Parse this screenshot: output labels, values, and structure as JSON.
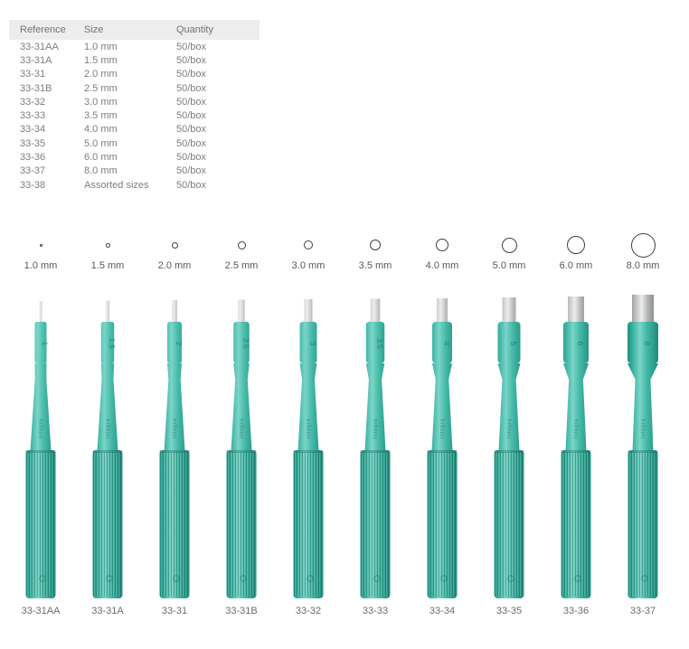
{
  "table": {
    "headers": [
      "Reference",
      "Size",
      "Quantity"
    ],
    "rows": [
      {
        "reference": "33-31AA",
        "size": "1.0 mm",
        "quantity": "50/box"
      },
      {
        "reference": "33-31A",
        "size": "1.5 mm",
        "quantity": "50/box"
      },
      {
        "reference": "33-31",
        "size": "2.0 mm",
        "quantity": "50/box"
      },
      {
        "reference": "33-31B",
        "size": "2.5 mm",
        "quantity": "50/box"
      },
      {
        "reference": "33-32",
        "size": "3.0 mm",
        "quantity": "50/box"
      },
      {
        "reference": "33-33",
        "size": "3.5 mm",
        "quantity": "50/box"
      },
      {
        "reference": "33-34",
        "size": "4.0 mm",
        "quantity": "50/box"
      },
      {
        "reference": "33-35",
        "size": "5.0 mm",
        "quantity": "50/box"
      },
      {
        "reference": "33-36",
        "size": "6.0 mm",
        "quantity": "50/box"
      },
      {
        "reference": "33-37",
        "size": "8.0 mm",
        "quantity": "50/box"
      },
      {
        "reference": "33-38",
        "size": "Assorted sizes",
        "quantity": "50/box"
      }
    ]
  },
  "punches": {
    "shaft_marking": "Integra",
    "items": [
      {
        "ref": "33-31AA",
        "size_label": "1.0 mm",
        "mm": 1.0,
        "mark": "1"
      },
      {
        "ref": "33-31A",
        "size_label": "1.5 mm",
        "mm": 1.5,
        "mark": "1.5"
      },
      {
        "ref": "33-31",
        "size_label": "2.0 mm",
        "mm": 2.0,
        "mark": "2"
      },
      {
        "ref": "33-31B",
        "size_label": "2.5 mm",
        "mm": 2.5,
        "mark": "2.5"
      },
      {
        "ref": "33-32",
        "size_label": "3.0 mm",
        "mm": 3.0,
        "mark": "3"
      },
      {
        "ref": "33-33",
        "size_label": "3.5 mm",
        "mm": 3.5,
        "mark": "3.5"
      },
      {
        "ref": "33-34",
        "size_label": "4.0 mm",
        "mm": 4.0,
        "mark": "4"
      },
      {
        "ref": "33-35",
        "size_label": "5.0 mm",
        "mm": 5.0,
        "mark": "5"
      },
      {
        "ref": "33-36",
        "size_label": "6.0 mm",
        "mm": 6.0,
        "mark": "6"
      },
      {
        "ref": "33-37",
        "size_label": "8.0 mm",
        "mm": 8.0,
        "mark": "8"
      }
    ]
  },
  "colors": {
    "teal_mid": "#3db3a2",
    "teal_highlight": "#7ad5c7",
    "teal_edge": "#1d8a7b",
    "metal_highlight": "#eceded",
    "metal_edge": "#7c7e7f",
    "table_header_bg": "#ededed",
    "table_text": "#7b7d80",
    "circle_stroke": "#3d3f41"
  }
}
